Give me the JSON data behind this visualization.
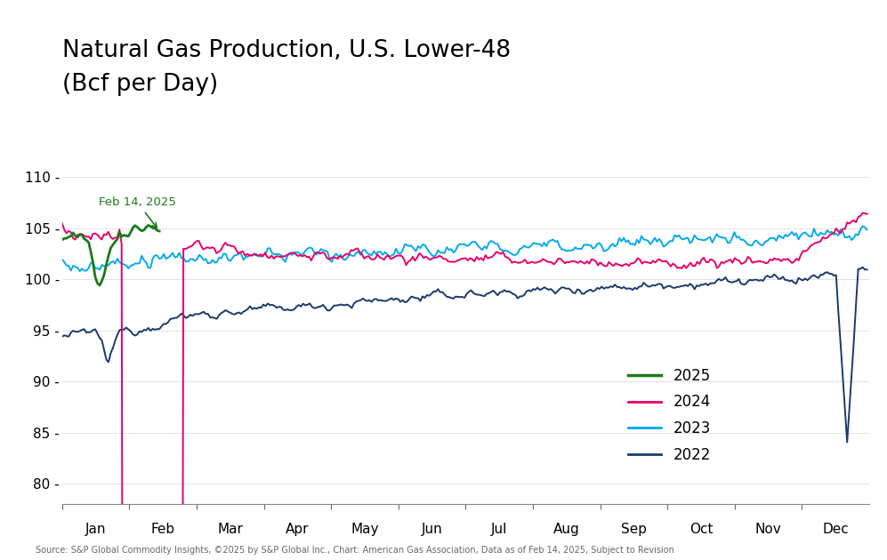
{
  "title_line1": "Natural Gas Production, U.S. Lower-48",
  "title_line2": "(Bcf per Day)",
  "colors": {
    "2025": "#1a7a1a",
    "2024": "#e8006a",
    "2023": "#00aaee",
    "2022": "#1a3a6a"
  },
  "ylim": [
    78,
    112
  ],
  "yticks": [
    80,
    85,
    90,
    95,
    100,
    105,
    110
  ],
  "months": [
    "Jan",
    "Feb",
    "Mar",
    "Apr",
    "May",
    "Jun",
    "Jul",
    "Aug",
    "Sep",
    "Oct",
    "Nov",
    "Dec"
  ],
  "annotation_text": "Feb 14, 2025",
  "annotation_color": "#1a7a1a",
  "source_text": "Source: S&P Global Commodity Insights, ©2025 by S&P Global Inc., Chart: American Gas Association, Data as of Feb 14, 2025, Subject to Revision",
  "background_color": "#FFFFFF"
}
